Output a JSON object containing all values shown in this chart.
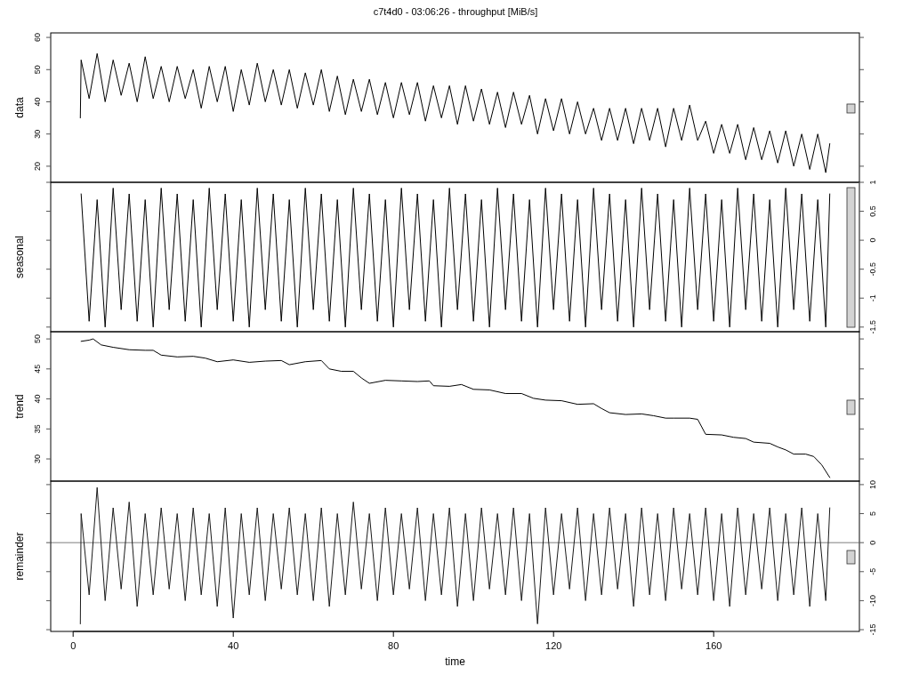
{
  "chart_data": [
    {
      "type": "line",
      "title": "c7t4d0 - 03:06:26 - throughput [MiB/s]",
      "ylabel": "data",
      "xlim": [
        -5.6,
        196.4
      ],
      "ylim": [
        15,
        61.4
      ],
      "yticks": [
        20,
        30,
        40,
        50,
        60
      ],
      "tick_labels": "y",
      "x": [
        1.8,
        2,
        4,
        6,
        8,
        10,
        12,
        14,
        16,
        18,
        20,
        22,
        24,
        26,
        28,
        30,
        32,
        34,
        36,
        38,
        40,
        42,
        44,
        46,
        48,
        50,
        52,
        54,
        56,
        58,
        60,
        62,
        64,
        66,
        68,
        70,
        72,
        74,
        76,
        78,
        80,
        82,
        84,
        86,
        88,
        90,
        92,
        94,
        96,
        98,
        100,
        102,
        104,
        106,
        108,
        110,
        112,
        114,
        116,
        118,
        120,
        122,
        124,
        126,
        128,
        130,
        132,
        134,
        136,
        138,
        140,
        142,
        144,
        146,
        148,
        150,
        152,
        154,
        156,
        158,
        160,
        162,
        164,
        166,
        168,
        170,
        172,
        174,
        176,
        178,
        180,
        182,
        184,
        186,
        188,
        189
      ],
      "series": [
        {
          "color": "#000000",
          "values": [
            35,
            53,
            41,
            55,
            40,
            53,
            42,
            52,
            40,
            54,
            41,
            51,
            40,
            51,
            41,
            50,
            38,
            51,
            40,
            51,
            37,
            50,
            39,
            52,
            40,
            50,
            39,
            50,
            38,
            49,
            39,
            50,
            37,
            48,
            36,
            47,
            37,
            47,
            36,
            46,
            35,
            46,
            36,
            46,
            34,
            45,
            35,
            45,
            33,
            45,
            34,
            44,
            33,
            43,
            32,
            43,
            33,
            42,
            30,
            41,
            31,
            41,
            30,
            40,
            30,
            38,
            28,
            38,
            28,
            38,
            27,
            38,
            28,
            38,
            26,
            38,
            28,
            39,
            28,
            34,
            24,
            33,
            24,
            33,
            22,
            32,
            22,
            31,
            21,
            31,
            20,
            30,
            19,
            30,
            18,
            27
          ]
        }
      ]
    },
    {
      "type": "line",
      "ylabel": "seasonal",
      "xlim": [
        -5.6,
        196.4
      ],
      "y2lim": [
        -1.58,
        1
      ],
      "y2ticks": [
        -1.5,
        -1,
        -0.5,
        0,
        0.5,
        1
      ],
      "tick_labels": "y2",
      "x": [
        2,
        4,
        6,
        8,
        10,
        12,
        14,
        16,
        18,
        20,
        22,
        24,
        26,
        28,
        30,
        32,
        34,
        36,
        38,
        40,
        42,
        44,
        46,
        48,
        50,
        52,
        54,
        56,
        58,
        60,
        62,
        64,
        66,
        68,
        70,
        72,
        74,
        76,
        78,
        80,
        82,
        84,
        86,
        88,
        90,
        92,
        94,
        96,
        98,
        100,
        102,
        104,
        106,
        108,
        110,
        112,
        114,
        116,
        118,
        120,
        122,
        124,
        126,
        128,
        130,
        132,
        134,
        136,
        138,
        140,
        142,
        144,
        146,
        148,
        150,
        152,
        154,
        156,
        158,
        160,
        162,
        164,
        166,
        168,
        170,
        172,
        174,
        176,
        178,
        180,
        182,
        184,
        186,
        188,
        189
      ],
      "series": [
        {
          "color": "#000000",
          "axis": "y2",
          "values": [
            0.8,
            -1.4,
            0.7,
            -1.5,
            0.9,
            -1.2,
            0.8,
            -1.4,
            0.7,
            -1.5,
            0.9,
            -1.2,
            0.8,
            -1.4,
            0.7,
            -1.5,
            0.9,
            -1.2,
            0.8,
            -1.4,
            0.7,
            -1.5,
            0.9,
            -1.2,
            0.8,
            -1.4,
            0.7,
            -1.5,
            0.9,
            -1.2,
            0.8,
            -1.4,
            0.7,
            -1.5,
            0.9,
            -1.2,
            0.8,
            -1.4,
            0.7,
            -1.5,
            0.9,
            -1.2,
            0.8,
            -1.4,
            0.7,
            -1.5,
            0.9,
            -1.2,
            0.8,
            -1.4,
            0.7,
            -1.5,
            0.9,
            -1.2,
            0.8,
            -1.4,
            0.7,
            -1.5,
            0.9,
            -1.2,
            0.8,
            -1.4,
            0.7,
            -1.5,
            0.9,
            -1.2,
            0.8,
            -1.4,
            0.7,
            -1.5,
            0.9,
            -1.2,
            0.8,
            -1.4,
            0.7,
            -1.5,
            0.9,
            -1.2,
            0.8,
            -1.4,
            0.7,
            -1.5,
            0.9,
            -1.2,
            0.8,
            -1.4,
            0.7,
            -1.5,
            0.9,
            -1.2,
            0.8,
            -1.4,
            0.7,
            -1.5,
            0.8
          ]
        }
      ]
    },
    {
      "type": "line",
      "ylabel": "trend",
      "xlim": [
        -5.6,
        196.4
      ],
      "ylim": [
        26.3,
        51.2
      ],
      "yticks": [
        30,
        35,
        40,
        45,
        50
      ],
      "tick_labels": "y",
      "x": [
        2,
        4,
        5,
        7,
        10,
        14,
        18,
        20,
        22,
        26,
        30,
        33,
        36,
        40,
        44,
        48,
        52,
        54,
        58,
        62,
        64,
        67,
        70,
        72,
        74,
        78,
        82,
        86,
        89,
        90,
        94,
        97,
        100,
        104,
        108,
        112,
        115,
        118,
        122,
        126,
        130,
        132,
        134,
        138,
        142,
        145,
        148,
        150,
        154,
        156,
        158,
        162,
        165,
        168,
        170,
        174,
        176,
        178,
        180,
        183,
        185,
        187,
        189
      ],
      "series": [
        {
          "color": "#000000",
          "values": [
            49.6,
            49.8,
            50,
            49,
            48.6,
            48.2,
            48.1,
            48.1,
            47.3,
            47,
            47.1,
            46.8,
            46.2,
            46.5,
            46.1,
            46.3,
            46.4,
            45.7,
            46.2,
            46.4,
            45,
            44.6,
            44.6,
            43.5,
            42.6,
            43.1,
            43,
            42.9,
            43,
            42.2,
            42.1,
            42.4,
            41.6,
            41.5,
            40.9,
            40.9,
            40.1,
            39.8,
            39.7,
            39.1,
            39.2,
            38.4,
            37.7,
            37.4,
            37.5,
            37.2,
            36.8,
            36.8,
            36.8,
            36.6,
            34.1,
            34,
            33.6,
            33.4,
            32.8,
            32.6,
            32,
            31.5,
            30.8,
            30.8,
            30.4,
            29,
            26.9
          ]
        }
      ]
    },
    {
      "type": "line",
      "ylabel": "remainder",
      "xlabel": "time",
      "xlim": [
        -5.6,
        196.4
      ],
      "xticks": [
        0,
        40,
        80,
        120,
        160
      ],
      "y2lim": [
        -15.3,
        10.6
      ],
      "y2ticks": [
        -15,
        -10,
        -5,
        0,
        5,
        10
      ],
      "ref_lines": [
        {
          "axis": "y2",
          "value": 0,
          "color": "#7f7f7f"
        }
      ],
      "x": [
        1.8,
        2,
        4,
        6,
        8,
        10,
        12,
        14,
        16,
        18,
        20,
        22,
        24,
        26,
        28,
        30,
        32,
        34,
        36,
        38,
        40,
        42,
        44,
        46,
        48,
        50,
        52,
        54,
        56,
        58,
        60,
        62,
        64,
        66,
        68,
        70,
        72,
        74,
        76,
        78,
        80,
        82,
        84,
        86,
        88,
        90,
        92,
        94,
        96,
        98,
        100,
        102,
        104,
        106,
        108,
        110,
        112,
        114,
        116,
        118,
        120,
        122,
        124,
        126,
        128,
        130,
        132,
        134,
        136,
        138,
        140,
        142,
        144,
        146,
        148,
        150,
        152,
        154,
        156,
        158,
        160,
        162,
        164,
        166,
        168,
        170,
        172,
        174,
        176,
        178,
        180,
        182,
        184,
        186,
        188,
        189
      ],
      "series": [
        {
          "color": "#1a1a1a",
          "axis": "y2",
          "values": [
            -14,
            5,
            -9,
            9.5,
            -10,
            6,
            -8,
            7,
            -11,
            5,
            -9,
            6,
            -8,
            5,
            -10,
            6,
            -9,
            5,
            -11,
            6,
            -13,
            5,
            -9,
            6,
            -10,
            5,
            -8,
            6,
            -9,
            5,
            -10,
            6,
            -11,
            5,
            -9,
            7,
            -8,
            5,
            -10,
            6,
            -9,
            5,
            -8,
            6,
            -10,
            5,
            -9,
            6,
            -11,
            5,
            -10,
            6,
            -8,
            5,
            -9,
            6,
            -10,
            5,
            -14,
            6,
            -9,
            5,
            -8,
            6,
            -10,
            5,
            -9,
            6,
            -8,
            5,
            -11,
            6,
            -9,
            5,
            -10,
            6,
            -8,
            5,
            -9,
            6,
            -10,
            5,
            -11,
            6,
            -9,
            5,
            -8,
            6,
            -10,
            5,
            -9,
            6,
            -11,
            5,
            -10,
            6
          ]
        }
      ]
    }
  ]
}
